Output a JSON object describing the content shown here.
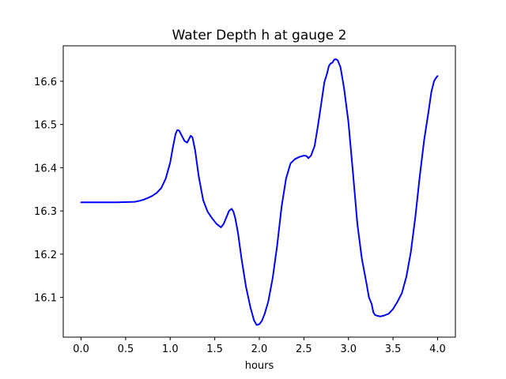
{
  "chart_data": {
    "type": "line",
    "title": "Water Depth h at gauge 2",
    "xlabel": "hours",
    "ylabel": "",
    "xlim": [
      -0.2,
      4.2
    ],
    "ylim": [
      16.008,
      16.682
    ],
    "x_ticks": [
      0.0,
      0.5,
      1.0,
      1.5,
      2.0,
      2.5,
      3.0,
      3.5,
      4.0
    ],
    "x_tick_labels": [
      "0.0",
      "0.5",
      "1.0",
      "1.5",
      "2.0",
      "2.5",
      "3.0",
      "3.5",
      "4.0"
    ],
    "y_ticks": [
      16.1,
      16.2,
      16.3,
      16.4,
      16.5,
      16.6
    ],
    "y_tick_labels": [
      "16.1",
      "16.2",
      "16.3",
      "16.4",
      "16.5",
      "16.6"
    ],
    "grid": false,
    "series": [
      {
        "color": "#0000ff",
        "x": [
          0.0,
          0.2,
          0.4,
          0.6,
          0.65,
          0.7,
          0.75,
          0.8,
          0.85,
          0.9,
          0.95,
          1.0,
          1.03,
          1.06,
          1.08,
          1.1,
          1.13,
          1.16,
          1.19,
          1.21,
          1.23,
          1.25,
          1.28,
          1.32,
          1.37,
          1.42,
          1.47,
          1.52,
          1.57,
          1.6,
          1.63,
          1.66,
          1.69,
          1.71,
          1.73,
          1.76,
          1.8,
          1.85,
          1.9,
          1.94,
          1.97,
          2.0,
          2.03,
          2.06,
          2.1,
          2.15,
          2.2,
          2.25,
          2.3,
          2.35,
          2.4,
          2.45,
          2.5,
          2.53,
          2.55,
          2.58,
          2.62,
          2.66,
          2.7,
          2.73,
          2.76,
          2.78,
          2.8,
          2.82,
          2.84,
          2.86,
          2.88,
          2.91,
          2.95,
          3.0,
          3.05,
          3.1,
          3.15,
          3.2,
          3.23,
          3.26,
          3.28,
          3.3,
          3.33,
          3.36,
          3.4,
          3.45,
          3.5,
          3.55,
          3.6,
          3.65,
          3.7,
          3.75,
          3.8,
          3.85,
          3.9,
          3.93,
          3.96,
          3.98,
          4.0
        ],
        "y": [
          16.32,
          16.32,
          16.32,
          16.321,
          16.323,
          16.326,
          16.33,
          16.335,
          16.342,
          16.353,
          16.375,
          16.412,
          16.447,
          16.478,
          16.487,
          16.486,
          16.474,
          16.462,
          16.458,
          16.466,
          16.474,
          16.47,
          16.44,
          16.38,
          16.325,
          16.298,
          16.283,
          16.27,
          16.262,
          16.27,
          16.285,
          16.3,
          16.305,
          16.298,
          16.283,
          16.25,
          16.19,
          16.125,
          16.077,
          16.047,
          16.036,
          16.038,
          16.046,
          16.062,
          16.09,
          16.145,
          16.22,
          16.31,
          16.375,
          16.41,
          16.42,
          16.425,
          16.428,
          16.427,
          16.422,
          16.428,
          16.45,
          16.5,
          16.556,
          16.598,
          16.618,
          16.635,
          16.641,
          16.643,
          16.65,
          16.651,
          16.648,
          16.633,
          16.585,
          16.505,
          16.39,
          16.27,
          16.19,
          16.135,
          16.1,
          16.085,
          16.065,
          16.059,
          16.057,
          16.056,
          16.058,
          16.062,
          16.073,
          16.09,
          16.11,
          16.148,
          16.205,
          16.285,
          16.38,
          16.465,
          16.532,
          16.575,
          16.6,
          16.607,
          16.612
        ]
      }
    ]
  }
}
